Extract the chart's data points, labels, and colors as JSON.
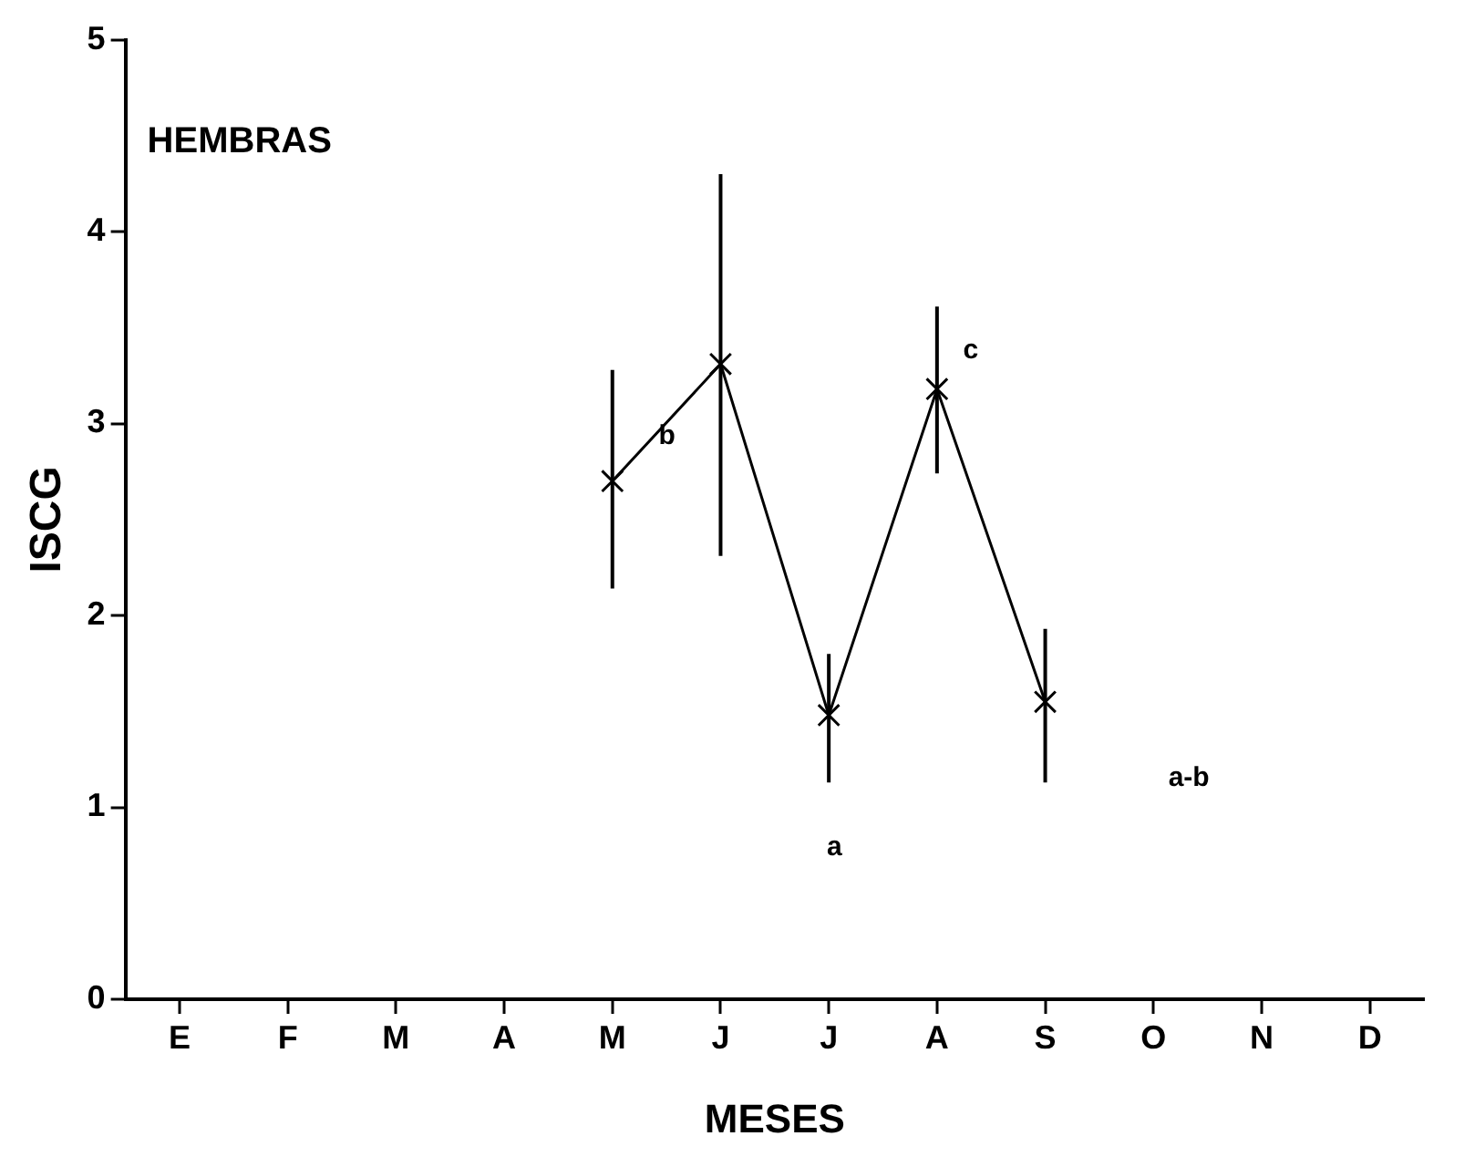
{
  "chart_data": {
    "type": "line",
    "title": "HEMBRAS",
    "xlabel": "MESES",
    "ylabel": "ISCG",
    "categories": [
      "E",
      "F",
      "M",
      "A",
      "M",
      "J",
      "J",
      "A",
      "S",
      "O",
      "N",
      "D"
    ],
    "series": [
      {
        "color": "#000000",
        "values": [
          null,
          null,
          null,
          null,
          2.7,
          3.31,
          1.48,
          3.18,
          1.55,
          null,
          null,
          null
        ],
        "errors": [
          null,
          null,
          null,
          null,
          [
            2.14,
            3.28
          ],
          [
            2.31,
            4.3
          ],
          [
            1.13,
            1.8
          ],
          [
            2.74,
            3.61
          ],
          [
            1.13,
            1.93
          ],
          null,
          null,
          null
        ]
      }
    ],
    "ylim": [
      0,
      5
    ],
    "yticks": [
      0,
      1,
      2,
      3,
      4,
      5
    ],
    "marker": "cross",
    "line_style": "solid",
    "grid": false,
    "legend": false,
    "annotations": [
      "b",
      "c",
      "a",
      "a-b"
    ]
  }
}
